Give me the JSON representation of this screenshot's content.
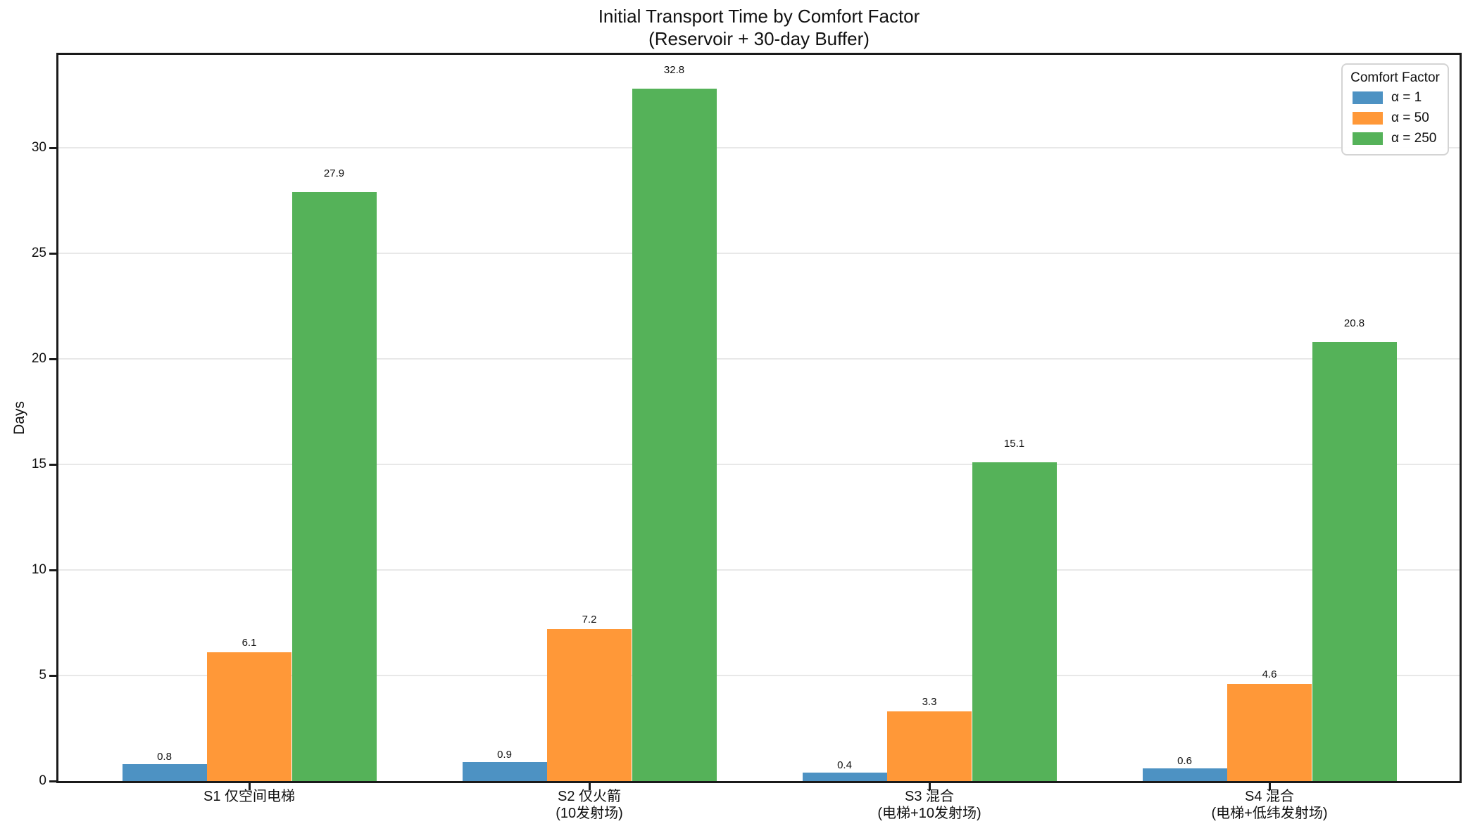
{
  "chart_data": {
    "type": "bar",
    "title": "Initial Transport Time by Comfort Factor",
    "subtitle": "(Reservoir + 30-day Buffer)",
    "xlabel": "",
    "ylabel": "Days",
    "ylim": [
      0,
      34.4
    ],
    "yticks": [
      0,
      5,
      10,
      15,
      20,
      25,
      30
    ],
    "grid": "horizontal",
    "legend_title": "Comfort Factor",
    "legend_position": "upper right",
    "categories": [
      "S1 仅空间电梯",
      "S2 仅火箭\n(10发射场)",
      "S3 混合\n(电梯+10发射场)",
      "S4 混合\n(电梯+低纬发射场)"
    ],
    "series": [
      {
        "name": "α = 1",
        "color": "#4d92c3",
        "values": [
          0.8,
          0.9,
          0.4,
          0.6
        ]
      },
      {
        "name": "α = 50",
        "color": "#ff9838",
        "values": [
          6.1,
          7.2,
          3.3,
          4.6
        ]
      },
      {
        "name": "α = 250",
        "color": "#55b259",
        "values": [
          27.9,
          32.8,
          15.1,
          20.8
        ]
      }
    ],
    "bar_value_labels": true,
    "colors": {
      "axis": "#1a1a1a",
      "grid": "#e8e8e8",
      "text": "#111111"
    }
  }
}
